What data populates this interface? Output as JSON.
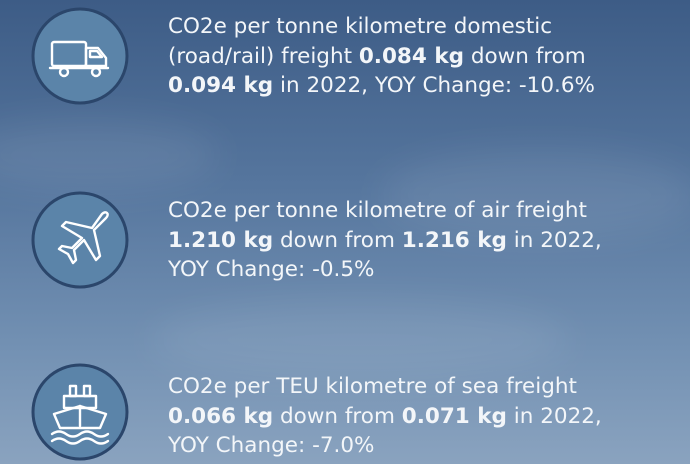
{
  "items": [
    {
      "icon": "truck",
      "lines": [
        [
          {
            "text": "CO2e per tonne kilometre domestic",
            "bold": false
          }
        ],
        [
          {
            "text": "(road/rail) freight ",
            "bold": false
          },
          {
            "text": "0.084 kg",
            "bold": true
          },
          {
            "text": " down from",
            "bold": false
          }
        ],
        [
          {
            "text": "0.094 kg",
            "bold": true
          },
          {
            "text": " in 2022, YOY Change: -10.6%",
            "bold": false
          }
        ]
      ]
    },
    {
      "icon": "plane",
      "lines": [
        [
          {
            "text": "CO2e per tonne kilometre of air freight",
            "bold": false
          }
        ],
        [
          {
            "text": "1.210 kg",
            "bold": true
          },
          {
            "text": " down from ",
            "bold": false
          },
          {
            "text": "1.216 kg",
            "bold": true
          },
          {
            "text": " in 2022,",
            "bold": false
          }
        ],
        [
          {
            "text": "YOY Change: -0.5%",
            "bold": false
          }
        ]
      ]
    },
    {
      "icon": "ship",
      "lines": [
        [
          {
            "text": "CO2e per TEU kilometre of sea freight",
            "bold": false
          }
        ],
        [
          {
            "text": "0.066 kg",
            "bold": true
          },
          {
            "text": " down from ",
            "bold": false
          },
          {
            "text": "0.071 kg",
            "bold": true
          },
          {
            "text": " in 2022,",
            "bold": false
          }
        ],
        [
          {
            "text": "YOY Change: -7.0%",
            "bold": false
          }
        ]
      ]
    }
  ]
}
